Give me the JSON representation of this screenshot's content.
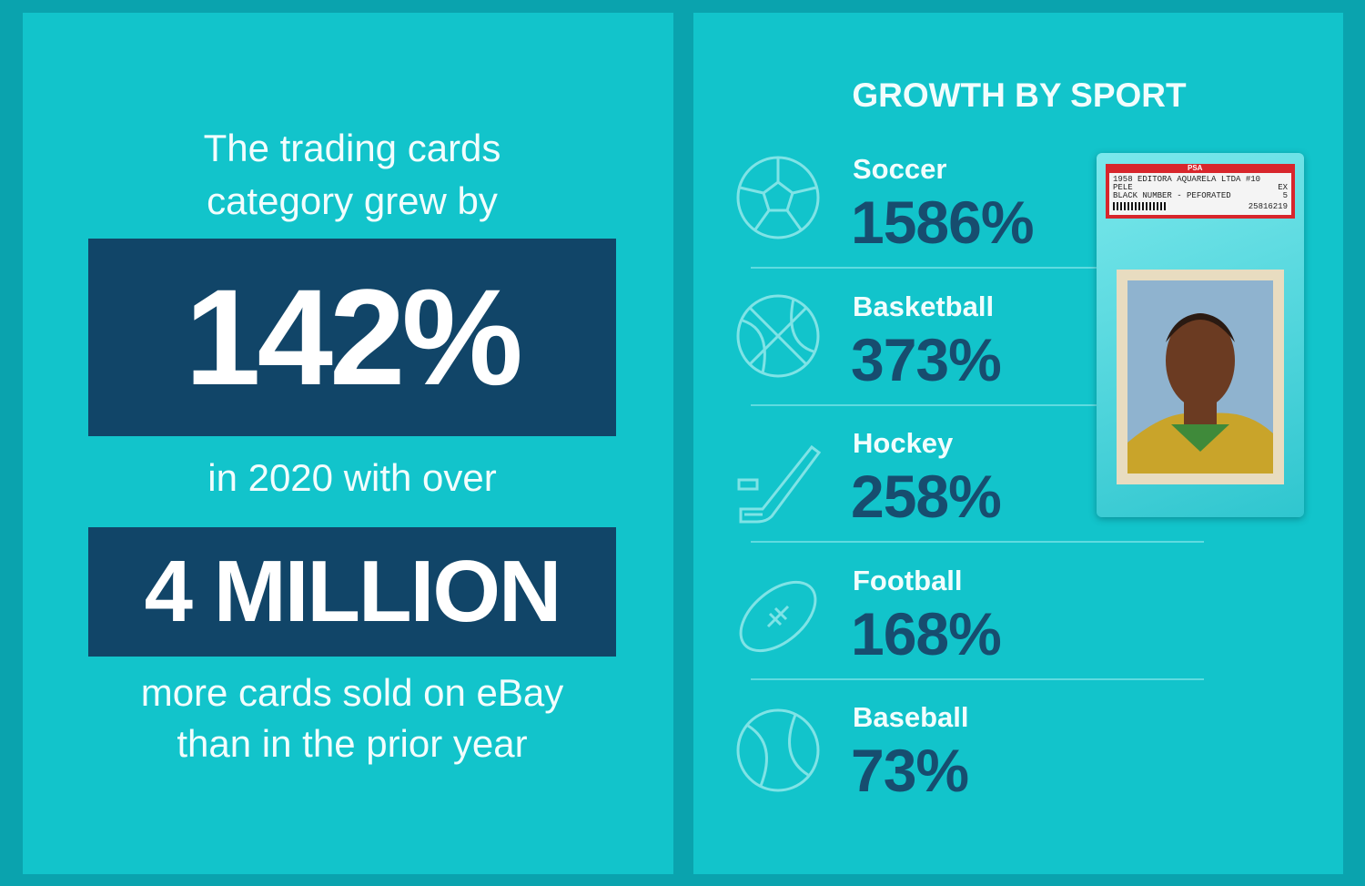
{
  "left": {
    "intro": [
      "The trading cards",
      "category grew by"
    ],
    "stat": "142%",
    "middle": "in 2020 with over",
    "count": "4 MILLION",
    "outro": [
      "more cards sold on eBay",
      "than in the prior year"
    ]
  },
  "right": {
    "title": "GROWTH BY SPORT",
    "sports": [
      {
        "name": "Soccer",
        "growth": "1586%"
      },
      {
        "name": "Basketball",
        "growth": "373%"
      },
      {
        "name": "Hockey",
        "growth": "258%"
      },
      {
        "name": "Football",
        "growth": "168%"
      },
      {
        "name": "Baseball",
        "growth": "73%"
      }
    ],
    "card": {
      "grader": "PSA",
      "line1": "1958 EDITORA AQUARELA LTDA #10",
      "player": "PELE",
      "grade_text": "EX",
      "line3": "BLACK NUMBER - PEFORATED",
      "grade": "5",
      "cert": "25816219"
    }
  }
}
